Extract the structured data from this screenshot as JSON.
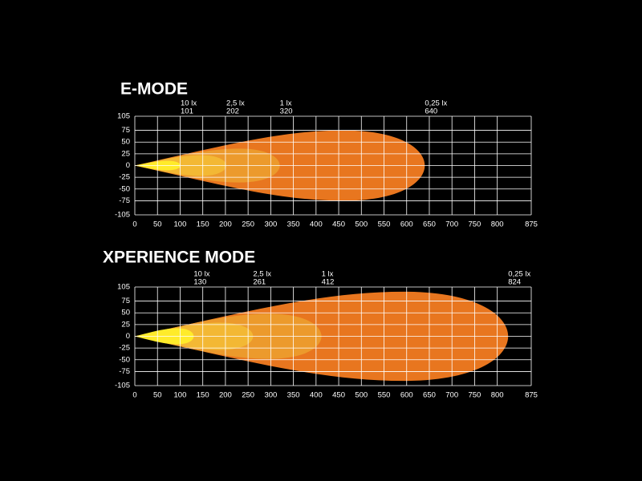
{
  "chart_data": [
    {
      "type": "isolux",
      "title": "E-MODE",
      "xlim": [
        0,
        875
      ],
      "ylim": [
        -105,
        105
      ],
      "xticks": [
        0,
        50,
        100,
        150,
        200,
        250,
        300,
        350,
        400,
        450,
        500,
        550,
        600,
        650,
        700,
        750,
        800,
        875
      ],
      "yticks": [
        105,
        75,
        50,
        25,
        0,
        -25,
        -50,
        -75,
        -105
      ],
      "grid": true,
      "series": [
        {
          "name": "0,25 lx",
          "reach": 640,
          "half_width": 75,
          "color": "#e8761f"
        },
        {
          "name": "1 lx",
          "reach": 320,
          "half_width": 36,
          "color": "#ec9a2c"
        },
        {
          "name": "2,5 lx",
          "reach": 202,
          "half_width": 22,
          "color": "#f3b834"
        },
        {
          "name": "10 lx",
          "reach": 101,
          "half_width": 10,
          "color": "#ffeb2a"
        }
      ]
    },
    {
      "type": "isolux",
      "title": "XPERIENCE MODE",
      "xlim": [
        0,
        875
      ],
      "ylim": [
        -105,
        105
      ],
      "xticks": [
        0,
        50,
        100,
        150,
        200,
        250,
        300,
        350,
        400,
        450,
        500,
        550,
        600,
        650,
        700,
        750,
        800,
        875
      ],
      "yticks": [
        105,
        75,
        50,
        25,
        0,
        -25,
        -50,
        -75,
        -105
      ],
      "grid": true,
      "series": [
        {
          "name": "0,25 lx",
          "reach": 824,
          "half_width": 95,
          "color": "#e8761f"
        },
        {
          "name": "1 lx",
          "reach": 412,
          "half_width": 48,
          "color": "#ec9a2c"
        },
        {
          "name": "2,5 lx",
          "reach": 261,
          "half_width": 29,
          "color": "#f3b834"
        },
        {
          "name": "10 lx",
          "reach": 130,
          "half_width": 17,
          "color": "#ffeb2a"
        }
      ]
    }
  ]
}
